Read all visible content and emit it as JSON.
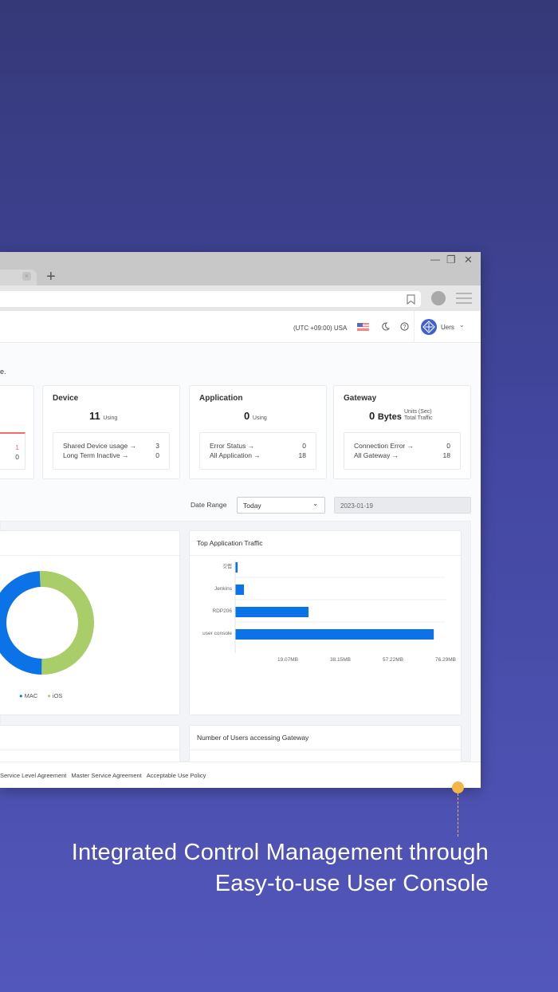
{
  "browser": {
    "new_tab": "+",
    "minimize": "—",
    "restore": "❐",
    "close": "✕",
    "tab_close": "×"
  },
  "header": {
    "timezone": "(UTC +09:00) USA",
    "user": "Uers",
    "chevron": "⌄"
  },
  "intro_fragment": "e.",
  "cards": {
    "left_partial": {
      "rows": [
        {
          "value": "1"
        },
        {
          "value": "0"
        }
      ]
    },
    "device": {
      "title": "Device",
      "count": "11",
      "count_label": "Using",
      "rows": [
        {
          "label": "Shared Device usage →",
          "value": "3"
        },
        {
          "label": "Long Term Inactive →",
          "value": "0"
        }
      ]
    },
    "application": {
      "title": "Application",
      "count": "0",
      "count_label": "Using",
      "rows": [
        {
          "label": "Error Status →",
          "value": "0"
        },
        {
          "label": "All Application →",
          "value": "18"
        }
      ]
    },
    "gateway": {
      "title": "Gateway",
      "count": "0",
      "count_unit": "Bytes",
      "units": "Units (Sec)",
      "units2": "Total Traffic",
      "rows": [
        {
          "label": "Connection Error →",
          "value": "0"
        },
        {
          "label": "All Gateway →",
          "value": "18"
        }
      ]
    }
  },
  "filter": {
    "label": "Date Range",
    "selected": "Today",
    "date": "2023-01-19"
  },
  "chart_data": [
    {
      "type": "pie",
      "donut": true,
      "series": [
        {
          "name": "MAC",
          "value": 49,
          "color": "#0b72e7"
        },
        {
          "name": "iOS",
          "value": 51,
          "color": "#a9cd69"
        }
      ],
      "legend": "bottom"
    },
    {
      "type": "bar",
      "orientation": "horizontal",
      "title": "Top Application Traffic",
      "categories": [
        "깃랩",
        "Jenkins",
        "RDP206",
        "user console"
      ],
      "values": [
        0.9,
        3.2,
        26.6,
        72.0
      ],
      "unit": "MB",
      "xticks": [
        "19.07MB",
        "38.15MB",
        "57.22MB",
        "76.29MB"
      ],
      "xlim": [
        0,
        76.29
      ],
      "color": "#0b72e7"
    }
  ],
  "bottom_panels": {
    "right_title": "Number of Users accessing Gateway"
  },
  "footer": {
    "links": [
      "Service Level Agreement",
      "Master Service Agreement",
      "Acceptable Use Policy"
    ]
  },
  "caption": {
    "line1": "Integrated Control Management through",
    "line2": "Easy-to-use User Console"
  },
  "colors": {
    "accent": "#0b72e7",
    "marker": "#f3b546"
  }
}
